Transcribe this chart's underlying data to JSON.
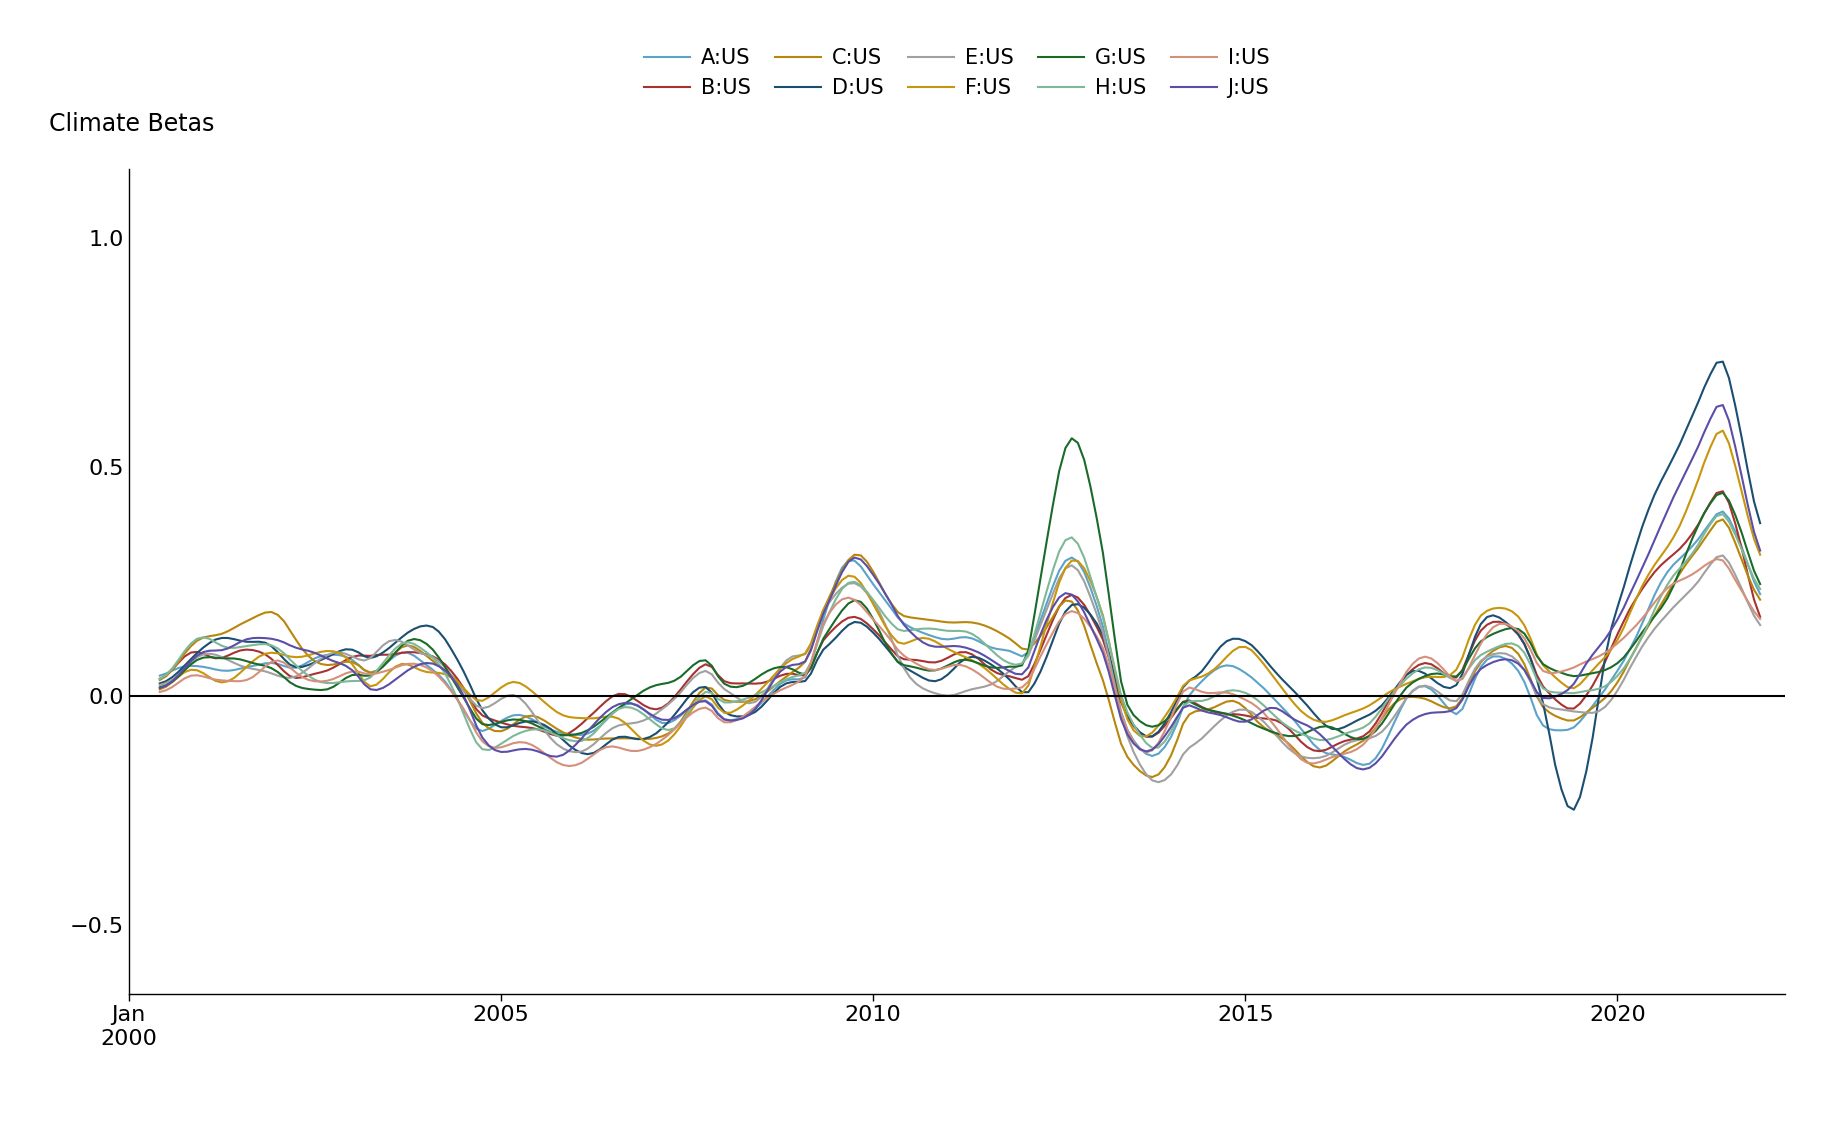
{
  "series_names": [
    "A:US",
    "B:US",
    "C:US",
    "D:US",
    "E:US",
    "F:US",
    "G:US",
    "H:US",
    "I:US",
    "J:US"
  ],
  "series_colors": [
    "#5BA3C9",
    "#A83232",
    "#B8860B",
    "#1B4F72",
    "#A0A0A0",
    "#C8960C",
    "#1A6B2A",
    "#7EB898",
    "#D4907A",
    "#5B4EA8"
  ],
  "line_width": 1.5,
  "ylabel": "Climate Betas",
  "ylim": [
    -0.65,
    1.15
  ],
  "yticks": [
    -0.5,
    0.0,
    0.5,
    1.0
  ],
  "background_color": "#FFFFFF",
  "legend_ncol": 5,
  "figsize": [
    18.4,
    11.29
  ],
  "dpi": 100
}
